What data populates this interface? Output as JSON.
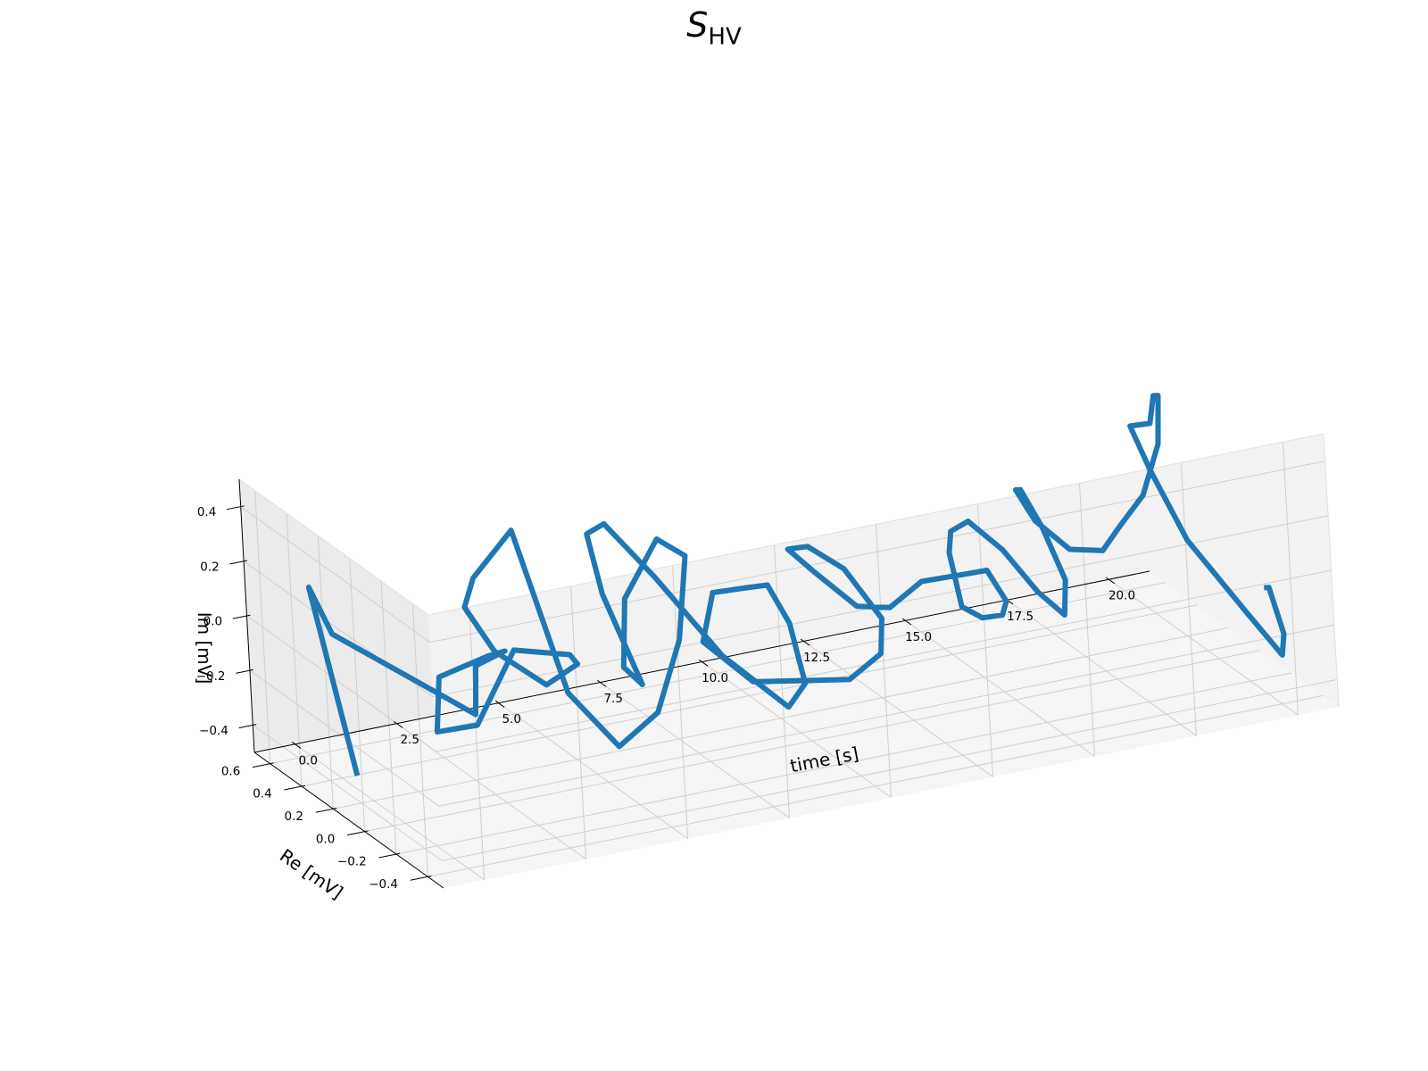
{
  "chart_data": {
    "type": "line-3d",
    "title": "S",
    "title_subscript": "HV",
    "xlabel": "time [s]",
    "ylabel": "Re [mV]",
    "zlabel": "Im [mV]",
    "xlim": [
      -1.0,
      21.0
    ],
    "ylim": [
      -0.5,
      0.7
    ],
    "zlim": [
      -0.5,
      0.5
    ],
    "xticks": [
      0.0,
      2.5,
      5.0,
      7.5,
      10.0,
      12.5,
      15.0,
      17.5,
      20.0
    ],
    "yticks": [
      -0.4,
      -0.2,
      0.0,
      0.2,
      0.4,
      0.6
    ],
    "zticks": [
      -0.4,
      -0.2,
      0.0,
      0.2,
      0.4
    ],
    "xtick_labels": [
      "0.0",
      "2.5",
      "5.0",
      "7.5",
      "10.0",
      "12.5",
      "15.0",
      "17.5",
      "20.0"
    ],
    "ytick_labels": [
      "−0.4",
      "−0.2",
      "0.0",
      "0.2",
      "0.4",
      "0.6"
    ],
    "ztick_labels": [
      "−0.4",
      "−0.2",
      "0.0",
      "0.2",
      "0.4"
    ],
    "grid": true,
    "line_color": "#1f77b4",
    "pane_colors": [
      "#f2f2f2",
      "#ebebeb",
      "#f5f5f5"
    ],
    "series": [
      {
        "x": [
          0.0,
          0.25,
          0.5,
          0.75,
          1.0,
          1.25,
          1.5,
          1.75,
          2.0,
          2.25,
          2.5,
          2.75,
          3.0,
          3.25,
          3.5,
          3.75,
          4.0,
          4.25,
          4.5,
          4.75,
          5.0,
          5.25,
          5.5,
          5.75,
          6.0,
          6.25,
          6.5,
          6.75,
          7.0,
          7.25,
          7.5,
          7.75,
          8.0,
          8.25,
          8.5,
          8.75,
          9.0,
          9.25,
          9.5,
          9.75,
          10.0,
          10.25,
          10.5,
          10.75,
          11.0,
          11.25,
          11.5,
          11.75,
          12.0,
          12.25,
          12.5,
          12.75,
          13.0,
          13.25,
          13.5,
          13.75,
          14.0,
          14.25,
          14.5,
          14.75,
          15.0,
          15.25,
          15.5,
          15.75,
          16.0,
          16.25,
          16.5,
          16.75,
          17.0,
          17.25,
          17.5,
          17.75,
          18.0,
          18.25,
          18.5,
          18.75,
          19.0,
          19.25,
          19.5,
          19.75,
          20.0,
          20.25,
          20.5,
          20.75,
          21.0
        ],
        "y": [
          0.3,
          0.62,
          0.55,
          -0.3,
          -0.25,
          -0.38,
          -0.2,
          0.2,
          0.3,
          0.1,
          -0.1,
          -0.4,
          -0.38,
          -0.1,
          0.3,
          0.55,
          0.55,
          0.35,
          0.1,
          -0.15,
          -0.35,
          -0.45,
          -0.45,
          -0.2,
          0.1,
          0.2,
          0.15,
          0.45,
          0.6,
          0.55,
          0.3,
          -0.05,
          -0.4,
          -0.45,
          -0.3,
          -0.1,
          0.1,
          0.4,
          0.55,
          0.3,
          0.05,
          -0.2,
          -0.35,
          -0.3,
          0.0,
          0.3,
          0.5,
          0.4,
          0.2,
          0.05,
          -0.1,
          -0.3,
          -0.4,
          -0.45,
          -0.35,
          -0.15,
          0.05,
          0.15,
          0.25,
          0.3,
          0.25,
          0.1,
          -0.05,
          -0.15,
          -0.1,
          0.1,
          0.3,
          0.4,
          0.35,
          0.2,
          0.05,
          0.0,
          -0.1,
          -0.15,
          -0.1,
          0.0,
          0.1,
          0.3,
          0.25,
          0.1,
          -0.2,
          -0.35,
          -0.3,
          -0.15,
          -0.05
        ],
        "z": [
          -0.45,
          0.1,
          -0.05,
          0.0,
          0.15,
          0.25,
          0.15,
          -0.1,
          -0.35,
          -0.25,
          0.1,
          0.2,
          0.15,
          -0.05,
          -0.1,
          -0.05,
          0.05,
          0.3,
          -0.2,
          -0.3,
          -0.1,
          0.2,
          0.5,
          0.45,
          0.1,
          -0.2,
          -0.25,
          -0.05,
          0.1,
          0.15,
          0.05,
          -0.1,
          -0.15,
          -0.05,
          0.1,
          0.15,
          0.05,
          -0.1,
          -0.35,
          -0.4,
          -0.3,
          -0.2,
          -0.05,
          0.05,
          0.1,
          0.05,
          -0.05,
          -0.1,
          -0.15,
          -0.1,
          0.05,
          0.15,
          0.2,
          0.1,
          0.0,
          -0.1,
          -0.15,
          -0.1,
          -0.05,
          0.0,
          0.05,
          0.0,
          -0.1,
          -0.15,
          -0.05,
          0.05,
          0.1,
          0.05,
          -0.05,
          -0.1,
          -0.05,
          0.05,
          0.2,
          0.4,
          0.55,
          0.5,
          0.35,
          0.25,
          0.1,
          -0.1,
          -0.25,
          -0.35,
          -0.3,
          -0.2,
          -0.25
        ]
      }
    ]
  }
}
